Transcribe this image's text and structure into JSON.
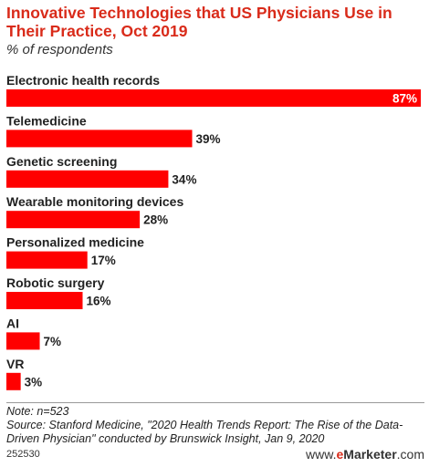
{
  "header": {
    "title": "Innovative Technologies that US Physicians Use in Their Practice, Oct 2019",
    "subtitle": "% of respondents"
  },
  "chart_data": {
    "type": "bar",
    "orientation": "horizontal",
    "title": "Innovative Technologies that US Physicians Use in Their Practice, Oct 2019",
    "subtitle": "% of respondents",
    "categories": [
      "Electronic health records",
      "Telemedicine",
      "Genetic screening",
      "Wearable monitoring devices",
      "Personalized medicine",
      "Robotic surgery",
      "AI",
      "VR"
    ],
    "values": [
      87,
      39,
      34,
      28,
      17,
      16,
      7,
      3
    ],
    "value_labels": [
      "87%",
      "39%",
      "34%",
      "28%",
      "17%",
      "16%",
      "7%",
      "3%"
    ],
    "xlim": [
      0,
      87
    ],
    "grid": false,
    "bar_color": "#ff0000"
  },
  "footer": {
    "note": "Note: n=523",
    "source": "Source: Stanford Medicine, \"2020 Health Trends Report: The Rise of the Data-Driven Physician\" conducted by Brunswick Insight, Jan 9, 2020",
    "chart_id": "252530",
    "brand_prefix": "www.",
    "brand_e": "e",
    "brand_name": "Marketer",
    "brand_suffix": ".com"
  },
  "colors": {
    "title": "#d92b1a",
    "bar": "#ff0000",
    "text": "#222222"
  }
}
